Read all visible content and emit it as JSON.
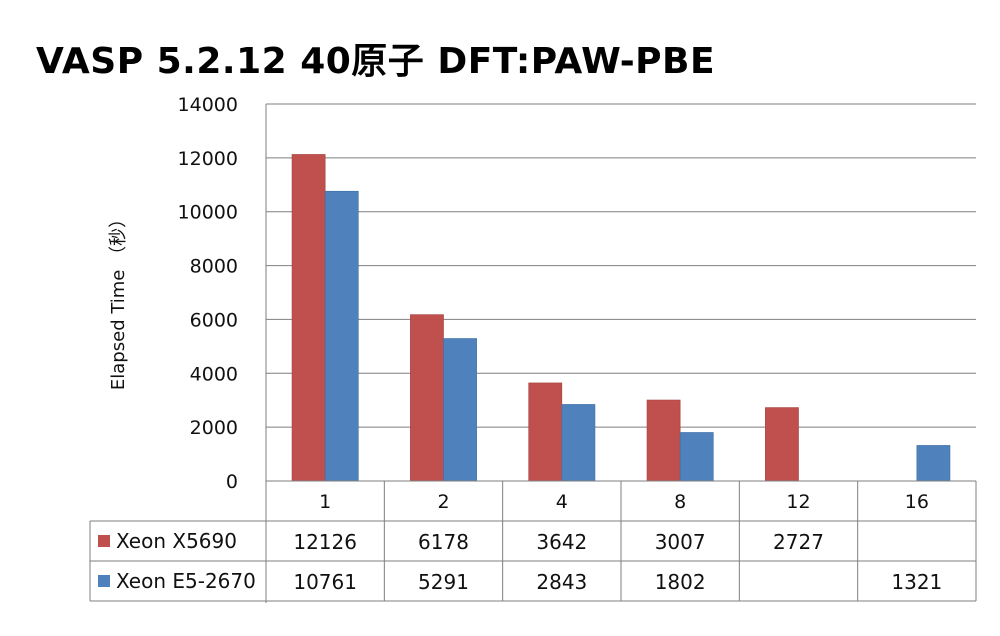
{
  "chart_data": {
    "type": "bar",
    "title": "VASP 5.2.12 40原子 DFT:PAW-PBE",
    "ylabel": "Elapsed Time （秒）",
    "xlabel": "",
    "categories": [
      "1",
      "2",
      "4",
      "8",
      "12",
      "16"
    ],
    "ylim": [
      0,
      14000
    ],
    "yticks": [
      0,
      2000,
      4000,
      6000,
      8000,
      10000,
      12000,
      14000
    ],
    "grid": true,
    "legend_placement": "data table below chart",
    "series": [
      {
        "name": "Xeon X5690",
        "color": "#c0504d",
        "values": [
          12126,
          6178,
          3642,
          3007,
          2727,
          null
        ]
      },
      {
        "name": "Xeon E5-2670",
        "color": "#4f81bd",
        "values": [
          10761,
          5291,
          2843,
          1802,
          null,
          1321
        ]
      }
    ]
  }
}
